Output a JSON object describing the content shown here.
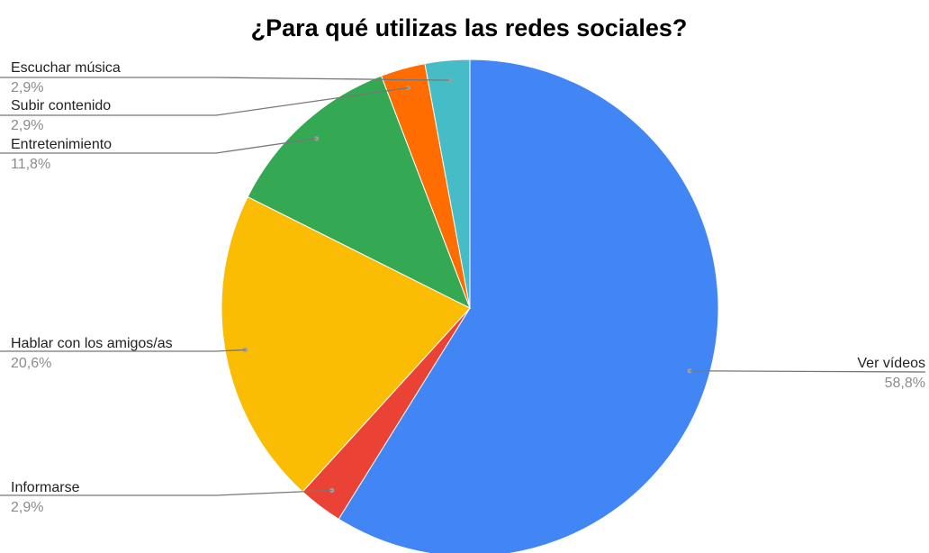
{
  "chart_data": {
    "type": "pie",
    "title": "¿Para qué utilizas las redes sociales?",
    "start_angle_deg": 0,
    "direction": "clockwise",
    "slices": [
      {
        "label": "Ver vídeos",
        "value": 58.8,
        "display": "58,8%",
        "color": "#4285f4"
      },
      {
        "label": "Informarse",
        "value": 2.9,
        "display": "2,9%",
        "color": "#ea4335"
      },
      {
        "label": "Hablar con los amigos/as",
        "value": 20.6,
        "display": "20,6%",
        "color": "#fbbc04"
      },
      {
        "label": "Entretenimiento",
        "value": 11.8,
        "display": "11,8%",
        "color": "#34a853"
      },
      {
        "label": "Subir contenido",
        "value": 2.9,
        "display": "2,9%",
        "color": "#ff6d01"
      },
      {
        "label": "Escuchar música",
        "value": 2.9,
        "display": "2,9%",
        "color": "#46bdc6"
      }
    ],
    "legend": "none",
    "labels": "outside-with-leader-lines"
  }
}
